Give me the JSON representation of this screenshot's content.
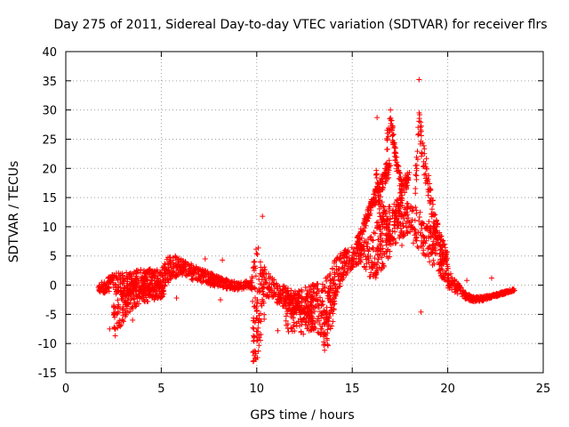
{
  "chart_data": {
    "type": "scatter",
    "title": "Day 275 of 2011, Sidereal Day-to-day VTEC variation (SDTVAR) for receiver flrs",
    "xlabel": "GPS time / hours",
    "ylabel": "SDTVAR / TECUs",
    "xlim": [
      0,
      25
    ],
    "ylim": [
      -15,
      40
    ],
    "xticks": [
      0,
      5,
      10,
      15,
      20,
      25
    ],
    "yticks": [
      -15,
      -10,
      -5,
      0,
      5,
      10,
      15,
      20,
      25,
      30,
      35,
      40
    ],
    "grid": true,
    "marker": "+",
    "color": "#ff0000",
    "bands": [
      {
        "x": [
          1.7,
          2.0,
          2.4,
          3.0,
          4.0,
          5.0,
          5.5,
          6.0,
          7.0,
          8.0,
          9.0,
          9.7,
          10.0,
          10.3,
          11.0,
          12.0,
          12.8,
          13.5,
          14.0,
          14.5,
          15.0,
          15.5,
          16.0,
          16.5,
          17.0,
          17.5,
          18.0,
          18.5,
          19.0,
          19.5,
          20.0,
          20.5,
          21.0,
          21.5,
          22.0,
          22.5,
          23.0,
          23.5
        ],
        "lo": [
          -1.0,
          -1.5,
          -1.0,
          -2.0,
          -1.5,
          -1.0,
          1.0,
          1.5,
          0.5,
          -0.5,
          -0.8,
          -0.5,
          -10.0,
          -3.0,
          -3.0,
          -5.0,
          -7.0,
          -9.0,
          -4.0,
          1.0,
          3.0,
          4.0,
          0.5,
          2.0,
          5.0,
          8.0,
          9.0,
          6.0,
          4.0,
          2.0,
          -0.5,
          -1.5,
          -2.5,
          -3.0,
          -2.5,
          -2.0,
          -1.5,
          -1.0
        ],
        "hi": [
          0.3,
          1.0,
          2.0,
          2.2,
          2.8,
          3.0,
          5.5,
          4.5,
          3.0,
          1.5,
          0.5,
          0.8,
          8.0,
          4.0,
          0.5,
          -1.0,
          0.0,
          0.5,
          4.0,
          6.0,
          6.5,
          7.0,
          9.0,
          12.0,
          14.0,
          15.0,
          14.0,
          13.0,
          11.0,
          8.0,
          3.0,
          0.5,
          -1.5,
          -2.0,
          -1.8,
          -1.5,
          -1.0,
          -0.5
        ]
      },
      {
        "x": [
          2.5,
          2.8,
          3.2,
          4.0,
          4.8,
          5.2
        ],
        "lo": [
          -9.0,
          -8.0,
          -5.0,
          -3.0,
          -2.5,
          -2.0
        ],
        "hi": [
          -1.0,
          -0.5,
          0.0,
          0.5,
          1.0,
          1.5
        ]
      },
      {
        "x": [
          15.2,
          15.5,
          15.8,
          16.1,
          16.4,
          16.7,
          17.0
        ],
        "lo": [
          6.0,
          8.0,
          11.0,
          13.0,
          15.0,
          17.0,
          19.0
        ],
        "hi": [
          8.0,
          10.0,
          13.0,
          15.5,
          18.0,
          20.5,
          22.0
        ]
      },
      {
        "x": [
          16.2,
          16.5,
          16.8,
          17.0
        ],
        "lo": [
          15.0,
          11.0,
          8.0,
          6.0
        ],
        "hi": [
          21.0,
          15.0,
          12.0,
          9.0
        ]
      },
      {
        "x": [
          16.8,
          17.0,
          17.3,
          17.6
        ],
        "lo": [
          22.0,
          27.0,
          20.0,
          15.0
        ],
        "hi": [
          26.0,
          30.0,
          23.0,
          18.0
        ]
      },
      {
        "x": [
          17.2,
          17.5,
          17.8,
          18.0
        ],
        "lo": [
          9.0,
          13.0,
          16.0,
          18.0
        ],
        "hi": [
          12.0,
          16.0,
          19.0,
          20.0
        ]
      },
      {
        "x": [
          18.3,
          18.5,
          18.7,
          19.0,
          19.3,
          19.6,
          20.0
        ],
        "lo": [
          15.0,
          25.0,
          20.0,
          14.0,
          9.0,
          6.0,
          3.0
        ],
        "hi": [
          20.0,
          30.0,
          26.0,
          19.0,
          13.0,
          9.0,
          6.0
        ]
      },
      {
        "x": [
          9.8,
          10.0,
          10.2,
          10.4
        ],
        "lo": [
          -14.0,
          -13.0,
          -10.0,
          -6.0
        ],
        "hi": [
          -6.0,
          -3.0,
          0.0,
          2.0
        ]
      },
      {
        "x": [
          13.5,
          13.7,
          13.9,
          14.1
        ],
        "lo": [
          -12.5,
          -11.0,
          -8.0,
          -5.0
        ],
        "hi": [
          -4.0,
          -2.0,
          0.0,
          2.0
        ]
      },
      {
        "x": [
          11.5,
          12.0,
          12.5,
          13.0
        ],
        "lo": [
          -8.0,
          -8.0,
          -8.5,
          -8.0
        ],
        "hi": [
          -2.0,
          -1.0,
          -1.5,
          -1.0
        ]
      }
    ],
    "outliers": [
      [
        2.3,
        -7.5
      ],
      [
        7.3,
        4.5
      ],
      [
        8.2,
        4.3
      ],
      [
        8.1,
        -2.5
      ],
      [
        10.3,
        11.8
      ],
      [
        11.1,
        -7.8
      ],
      [
        16.3,
        28.7
      ],
      [
        17.0,
        30.0
      ],
      [
        18.5,
        35.2
      ],
      [
        18.6,
        -4.6
      ],
      [
        18.2,
        7.2
      ],
      [
        17.6,
        6.8
      ],
      [
        22.3,
        1.2
      ],
      [
        21.0,
        0.8
      ],
      [
        5.8,
        -2.2
      ],
      [
        3.5,
        -6.0
      ]
    ]
  }
}
